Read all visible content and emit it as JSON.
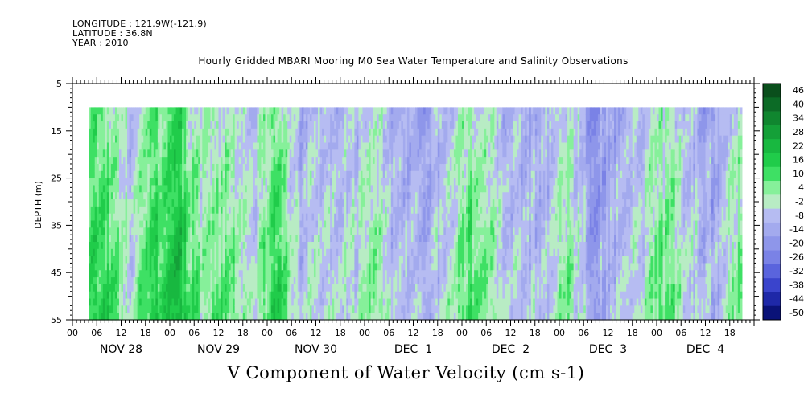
{
  "header": {
    "longitude": "LONGITUDE : 121.9W(-121.9)",
    "latitude": "LATITUDE : 36.8N",
    "year": "YEAR : 2010"
  },
  "chart_data": {
    "type": "heatmap",
    "title": "Hourly Gridded MBARI Mooring M0 Sea Water Temperature and Salinity Observations",
    "xlabel": "V Component of Water Velocity (cm s-1)",
    "ylabel": "DEPTH (m)",
    "ylim": [
      5,
      55
    ],
    "y_reversed": true,
    "y_ticks": [
      5,
      15,
      25,
      35,
      45,
      55
    ],
    "x_start_hours": -0.0,
    "x_range_hours": [
      0,
      168
    ],
    "x_tick_labels": [
      "00",
      "06",
      "12",
      "18",
      "00",
      "06",
      "12",
      "18",
      "00",
      "06",
      "12",
      "18",
      "00",
      "06",
      "12",
      "18",
      "00",
      "06",
      "12",
      "18",
      "00",
      "06",
      "12",
      "18",
      "00",
      "06",
      "12",
      "18"
    ],
    "day_labels": [
      "NOV 28",
      "NOV 29",
      "NOV 30",
      "DEC  1",
      "DEC  2",
      "DEC  3",
      "DEC  4"
    ],
    "data_depth_range": [
      10,
      55
    ],
    "data_time_range_hours": [
      4,
      165
    ],
    "colorbar": {
      "min": -50,
      "max": 50,
      "labels": [
        "46",
        "40",
        "34",
        "28",
        "22",
        "16",
        "10",
        "4",
        "-2",
        "-8",
        "-14",
        "-20",
        "-26",
        "-32",
        "-38",
        "-44",
        "-50"
      ]
    },
    "field_profile": {
      "description_hours": [
        4,
        8,
        14,
        20,
        26,
        32,
        38,
        44,
        50,
        56,
        62,
        68,
        74,
        80,
        86,
        92,
        98,
        104,
        110,
        116,
        122,
        128,
        134,
        140,
        146,
        152,
        158,
        164
      ],
      "mean_velocity": [
        14,
        8,
        -4,
        10,
        16,
        -2,
        6,
        -6,
        12,
        -8,
        -4,
        -6,
        2,
        -10,
        -12,
        -6,
        8,
        -2,
        -10,
        -8,
        2,
        -16,
        -10,
        -4,
        4,
        -6,
        -12,
        2
      ]
    }
  }
}
